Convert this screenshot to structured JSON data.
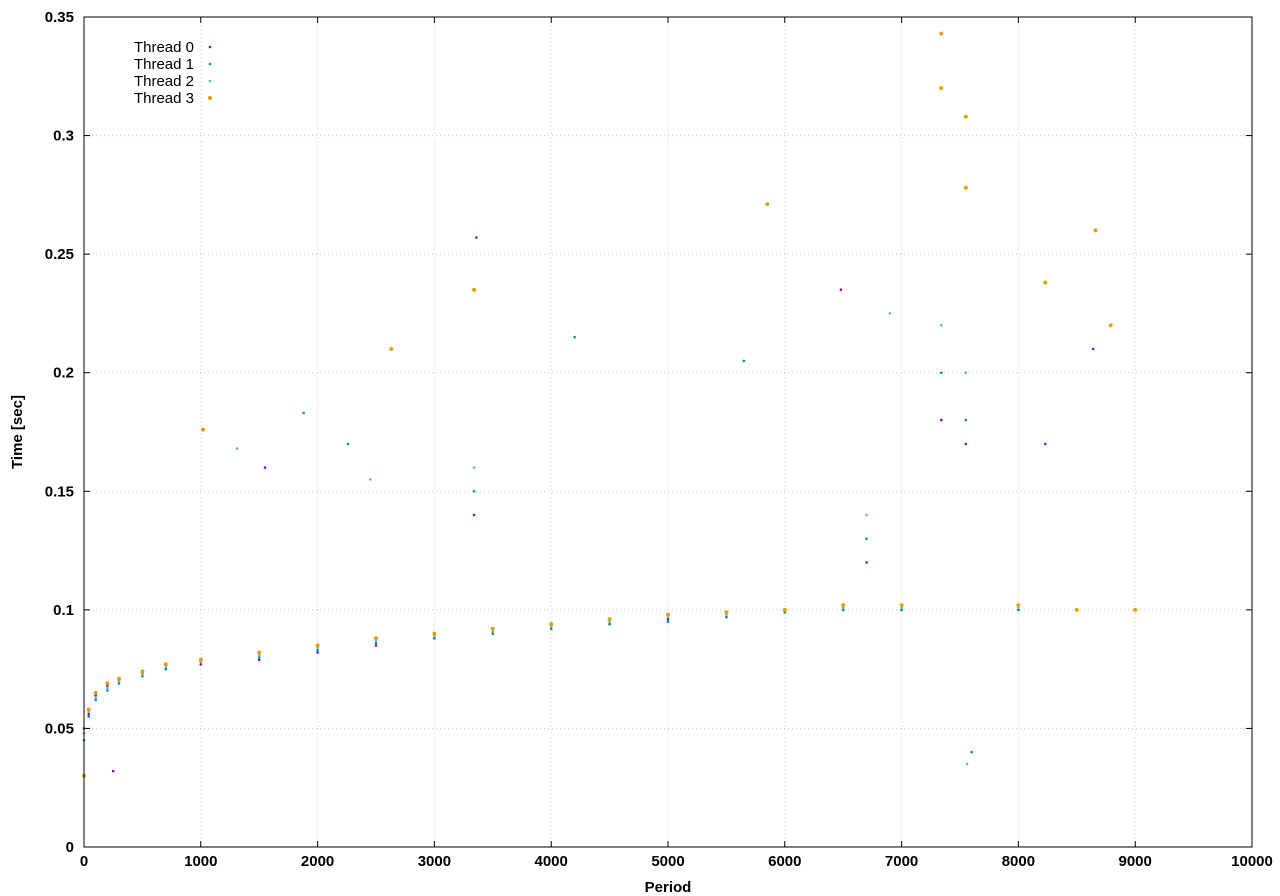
{
  "chart_data": {
    "type": "scatter",
    "title": "",
    "xlabel": "Period",
    "ylabel": "Time [sec]",
    "xlim": [
      0,
      10000
    ],
    "ylim": [
      0,
      0.35
    ],
    "x_ticks": [
      0,
      1000,
      2000,
      3000,
      4000,
      5000,
      6000,
      7000,
      8000,
      9000,
      10000
    ],
    "y_ticks": [
      0,
      0.05,
      0.1,
      0.15,
      0.2,
      0.25,
      0.3,
      0.35
    ],
    "x_tick_labels": [
      "0",
      "1000",
      "2000",
      "3000",
      "4000",
      "5000",
      "6000",
      "7000",
      "8000",
      "9000",
      "10000"
    ],
    "y_tick_labels": [
      "0",
      "0.05",
      "0.1",
      "0.15",
      "0.2",
      "0.25",
      "0.3",
      "0.35"
    ],
    "grid": true,
    "legend_position": "top-left",
    "series": [
      {
        "name": "Thread 0",
        "color": "#9400d3",
        "marker": "dot",
        "points": [
          [
            0,
            0.05
          ],
          [
            40,
            0.056
          ],
          [
            100,
            0.064
          ],
          [
            200,
            0.068
          ],
          [
            300,
            0.07
          ],
          [
            500,
            0.073
          ],
          [
            700,
            0.075
          ],
          [
            1000,
            0.077
          ],
          [
            1500,
            0.079
          ],
          [
            2000,
            0.082
          ],
          [
            2500,
            0.085
          ],
          [
            3000,
            0.088
          ],
          [
            3340,
            0.14
          ],
          [
            3500,
            0.09
          ],
          [
            4000,
            0.092
          ],
          [
            4500,
            0.094
          ],
          [
            5000,
            0.096
          ],
          [
            5500,
            0.097
          ],
          [
            6000,
            0.099
          ],
          [
            6500,
            0.1
          ],
          [
            6700,
            0.12
          ],
          [
            7000,
            0.1
          ],
          [
            7340,
            0.18
          ],
          [
            7550,
            0.17
          ],
          [
            8000,
            0.1
          ],
          [
            8500,
            0.1
          ],
          [
            9000,
            0.1
          ],
          [
            250,
            0.032
          ],
          [
            1550,
            0.16
          ],
          [
            3360,
            0.257
          ],
          [
            6480,
            0.235
          ],
          [
            8230,
            0.17
          ],
          [
            8640,
            0.21
          ]
        ]
      },
      {
        "name": "Thread 1",
        "color": "#009e73",
        "marker": "dot",
        "points": [
          [
            0,
            0.045
          ],
          [
            40,
            0.055
          ],
          [
            100,
            0.062
          ],
          [
            200,
            0.066
          ],
          [
            300,
            0.069
          ],
          [
            500,
            0.072
          ],
          [
            700,
            0.075
          ],
          [
            1000,
            0.078
          ],
          [
            1500,
            0.08
          ],
          [
            2000,
            0.083
          ],
          [
            2500,
            0.086
          ],
          [
            3000,
            0.088
          ],
          [
            3340,
            0.15
          ],
          [
            3500,
            0.09
          ],
          [
            4000,
            0.092
          ],
          [
            4200,
            0.215
          ],
          [
            4500,
            0.094
          ],
          [
            5000,
            0.095
          ],
          [
            5500,
            0.097
          ],
          [
            6000,
            0.099
          ],
          [
            6500,
            0.1
          ],
          [
            6700,
            0.13
          ],
          [
            7000,
            0.1
          ],
          [
            7340,
            0.2
          ],
          [
            7550,
            0.18
          ],
          [
            8000,
            0.1
          ],
          [
            8500,
            0.1
          ],
          [
            9000,
            0.1
          ],
          [
            1880,
            0.183
          ],
          [
            2260,
            0.17
          ],
          [
            5650,
            0.205
          ],
          [
            7600,
            0.04
          ]
        ]
      },
      {
        "name": "Thread 2",
        "color": "#56b4e9",
        "marker": "dot",
        "points": [
          [
            0,
            0.048
          ],
          [
            40,
            0.057
          ],
          [
            100,
            0.063
          ],
          [
            200,
            0.067
          ],
          [
            300,
            0.07
          ],
          [
            500,
            0.073
          ],
          [
            700,
            0.076
          ],
          [
            1000,
            0.078
          ],
          [
            1500,
            0.081
          ],
          [
            2000,
            0.084
          ],
          [
            2500,
            0.087
          ],
          [
            3000,
            0.089
          ],
          [
            3340,
            0.16
          ],
          [
            3500,
            0.091
          ],
          [
            4000,
            0.093
          ],
          [
            4500,
            0.095
          ],
          [
            5000,
            0.097
          ],
          [
            5500,
            0.098
          ],
          [
            6000,
            0.1
          ],
          [
            6500,
            0.101
          ],
          [
            6700,
            0.14
          ],
          [
            7000,
            0.101
          ],
          [
            7340,
            0.22
          ],
          [
            7550,
            0.2
          ],
          [
            8000,
            0.101
          ],
          [
            8500,
            0.1
          ],
          [
            9000,
            0.1
          ],
          [
            1310,
            0.168
          ],
          [
            2450,
            0.155
          ],
          [
            6900,
            0.225
          ],
          [
            7560,
            0.035
          ]
        ]
      },
      {
        "name": "Thread 3",
        "color": "#e69f00",
        "marker": "dot",
        "points": [
          [
            0,
            0.03
          ],
          [
            40,
            0.058
          ],
          [
            100,
            0.065
          ],
          [
            200,
            0.069
          ],
          [
            300,
            0.071
          ],
          [
            500,
            0.074
          ],
          [
            700,
            0.077
          ],
          [
            1000,
            0.079
          ],
          [
            1020,
            0.176
          ],
          [
            1500,
            0.082
          ],
          [
            2000,
            0.085
          ],
          [
            2500,
            0.088
          ],
          [
            2630,
            0.21
          ],
          [
            3000,
            0.09
          ],
          [
            3340,
            0.235
          ],
          [
            3500,
            0.092
          ],
          [
            4000,
            0.094
          ],
          [
            4500,
            0.096
          ],
          [
            5000,
            0.098
          ],
          [
            5500,
            0.099
          ],
          [
            5850,
            0.271
          ],
          [
            6000,
            0.1
          ],
          [
            6500,
            0.102
          ],
          [
            7000,
            0.102
          ],
          [
            7340,
            0.343
          ],
          [
            7340,
            0.32
          ],
          [
            7550,
            0.308
          ],
          [
            7550,
            0.278
          ],
          [
            8000,
            0.102
          ],
          [
            8230,
            0.238
          ],
          [
            8500,
            0.1
          ],
          [
            8660,
            0.26
          ],
          [
            8790,
            0.22
          ],
          [
            9000,
            0.1
          ]
        ]
      }
    ]
  }
}
